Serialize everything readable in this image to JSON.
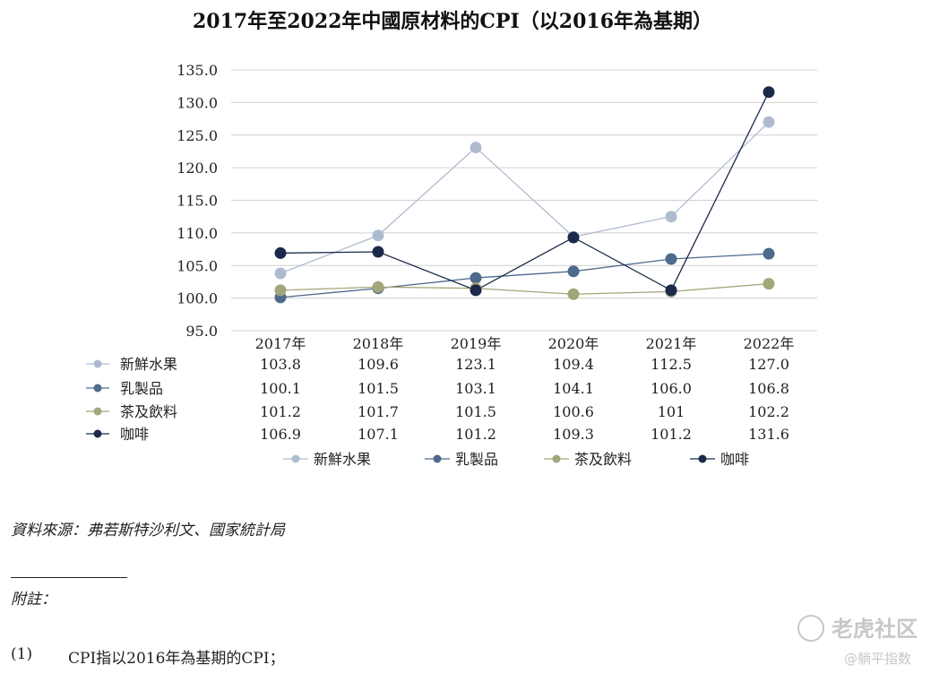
{
  "title": "2017年至2022年中國原材料的CPI（以2016年為基期）",
  "chart_data": {
    "type": "line",
    "title": "2017年至2022年中國原材料的CPI（以2016年為基期）",
    "categories": [
      "2017年",
      "2018年",
      "2019年",
      "2020年",
      "2021年",
      "2022年"
    ],
    "ylim": [
      95.0,
      135.0
    ],
    "yticks": [
      "95.0",
      "100.0",
      "105.0",
      "110.0",
      "115.0",
      "120.0",
      "125.0",
      "130.0",
      "135.0"
    ],
    "grid": true,
    "legend_position": "bottom",
    "series": [
      {
        "name": "新鮮水果",
        "color": "#aebbcf",
        "values": [
          103.8,
          109.6,
          123.1,
          109.4,
          112.5,
          127.0
        ],
        "labels": [
          "103.8",
          "109.6",
          "123.1",
          "109.4",
          "112.5",
          "127.0"
        ]
      },
      {
        "name": "乳製品",
        "color": "#4e6a8c",
        "values": [
          100.1,
          101.5,
          103.1,
          104.1,
          106.0,
          106.8
        ],
        "labels": [
          "100.1",
          "101.5",
          "103.1",
          "104.1",
          "106.0",
          "106.8"
        ]
      },
      {
        "name": "茶及飲料",
        "color": "#a3a679",
        "values": [
          101.2,
          101.7,
          101.5,
          100.6,
          101,
          102.2
        ],
        "labels": [
          "101.2",
          "101.7",
          "101.5",
          "100.6",
          "101",
          "102.2"
        ]
      },
      {
        "name": "咖啡",
        "color": "#1b2a4a",
        "values": [
          106.9,
          107.1,
          101.2,
          109.3,
          101.2,
          131.6
        ],
        "labels": [
          "106.9",
          "107.1",
          "101.2",
          "109.3",
          "101.2",
          "131.6"
        ]
      }
    ]
  },
  "source": "資料來源：弗若斯特沙利文、國家統計局",
  "notes_heading": "附註：",
  "notes": [
    {
      "number": "(1)",
      "text": "CPI指以2016年為基期的CPI；"
    }
  ],
  "watermark": {
    "main": "老虎社区",
    "sub": "@躺平指数"
  }
}
